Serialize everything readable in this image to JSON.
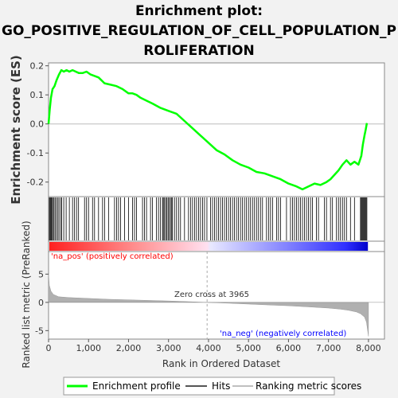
{
  "title_lines": [
    "Enrichment plot:",
    "GO_POSITIVE_REGULATION_OF_CELL_POPULATION_P",
    "ROLIFERATION"
  ],
  "colors": {
    "background": "#f2f2f2",
    "plot_bg": "#ffffff",
    "es_line": "#00ff00",
    "hits": "#000000",
    "metric_fill": "#b0b0b0",
    "pos_label": "#ff0000",
    "neg_label": "#0000ff",
    "heat_pos": "#ff0000",
    "heat_neg": "#0000ff"
  },
  "chart_data": [
    {
      "type": "line",
      "name": "es_panel",
      "ylabel": "Enrichment score (ES)",
      "ylim": [
        -0.25,
        0.21
      ],
      "xlim": [
        0,
        8400
      ],
      "yticks": [
        0.2,
        0.1,
        0.0,
        -0.1,
        -0.2
      ],
      "ytick_labels": [
        "0.2",
        "0.1",
        "0.0",
        "-0.1",
        "-0.2"
      ],
      "series": [
        {
          "name": "Enrichment profile",
          "x": [
            0,
            30,
            60,
            100,
            150,
            200,
            260,
            320,
            380,
            450,
            520,
            600,
            680,
            760,
            850,
            950,
            1050,
            1150,
            1250,
            1400,
            1550,
            1700,
            1850,
            2000,
            2100,
            2200,
            2300,
            2450,
            2600,
            2800,
            3000,
            3200,
            3400,
            3600,
            3800,
            4000,
            4200,
            4400,
            4600,
            4800,
            5000,
            5200,
            5400,
            5600,
            5800,
            6000,
            6200,
            6350,
            6500,
            6650,
            6800,
            6950,
            7050,
            7150,
            7250,
            7350,
            7450,
            7550,
            7650,
            7750,
            7820,
            7860,
            7900,
            7930,
            7960
          ],
          "y": [
            0.0,
            0.05,
            0.09,
            0.12,
            0.13,
            0.15,
            0.17,
            0.185,
            0.18,
            0.185,
            0.18,
            0.185,
            0.18,
            0.175,
            0.175,
            0.18,
            0.17,
            0.165,
            0.16,
            0.14,
            0.135,
            0.13,
            0.12,
            0.105,
            0.105,
            0.1,
            0.09,
            0.08,
            0.07,
            0.055,
            0.045,
            0.035,
            0.01,
            -0.015,
            -0.04,
            -0.065,
            -0.09,
            -0.105,
            -0.125,
            -0.14,
            -0.15,
            -0.165,
            -0.17,
            -0.18,
            -0.19,
            -0.205,
            -0.215,
            -0.225,
            -0.215,
            -0.205,
            -0.21,
            -0.2,
            -0.19,
            -0.175,
            -0.16,
            -0.14,
            -0.125,
            -0.14,
            -0.13,
            -0.14,
            -0.11,
            -0.07,
            -0.04,
            -0.02,
            0.003
          ]
        }
      ]
    },
    {
      "type": "area",
      "name": "ranked_metric_panel",
      "xlabel": "Rank in Ordered Dataset",
      "ylabel": "Ranked list metric (PreRanked)",
      "xlim": [
        0,
        8400
      ],
      "ylim": [
        -6.5,
        9
      ],
      "xticks": [
        0,
        1000,
        2000,
        3000,
        4000,
        5000,
        6000,
        7000,
        8000
      ],
      "xtick_labels": [
        "0",
        "1,000",
        "2,000",
        "3,000",
        "4,000",
        "5,000",
        "6,000",
        "7,000",
        "8,000"
      ],
      "yticks": [
        5,
        0,
        -5
      ],
      "ytick_labels": [
        "5",
        "0",
        "-5"
      ],
      "zero_cross": 3965,
      "zero_cross_label": "Zero cross at 3965",
      "pos_label": "'na_pos' (positively correlated)",
      "neg_label": "'na_neg' (negatively correlated)",
      "series": [
        {
          "name": "Ranking metric scores",
          "x": [
            0,
            20,
            60,
            120,
            250,
            500,
            1000,
            1500,
            2000,
            2500,
            3000,
            3500,
            3965,
            4500,
            5000,
            5500,
            6000,
            6500,
            7000,
            7300,
            7500,
            7700,
            7800,
            7900,
            7950,
            7980,
            8000
          ],
          "y": [
            5.0,
            3.0,
            2.0,
            1.4,
            1.0,
            0.85,
            0.7,
            0.55,
            0.45,
            0.35,
            0.25,
            0.12,
            0.0,
            -0.15,
            -0.3,
            -0.45,
            -0.6,
            -0.8,
            -1.0,
            -1.2,
            -1.4,
            -1.7,
            -2.0,
            -2.6,
            -3.5,
            -5.0,
            -6.0
          ]
        }
      ]
    }
  ],
  "hits": [
    20,
    40,
    60,
    80,
    100,
    130,
    160,
    190,
    230,
    260,
    300,
    330,
    380,
    440,
    520,
    600,
    650,
    700,
    750,
    900,
    950,
    1000,
    1100,
    1150,
    1250,
    1350,
    1400,
    1500,
    1650,
    1700,
    1750,
    1800,
    1900,
    2000,
    2100,
    2150,
    2200,
    2350,
    2400,
    2450,
    2550,
    2600,
    2700,
    2750,
    2800,
    2850,
    2870,
    2900,
    2930,
    2960,
    2990,
    3020,
    3050,
    3080,
    3100,
    3150,
    3200,
    3250,
    3300,
    3400,
    3500,
    3550,
    3600,
    3650,
    3700,
    3750,
    3800,
    3850,
    3900,
    3960,
    4050,
    4100,
    4150,
    4200,
    4250,
    4300,
    4350,
    4400,
    4450,
    4500,
    4550,
    4600,
    4650,
    4700,
    4750,
    4800,
    4850,
    4900,
    4950,
    5000,
    5050,
    5100,
    5150,
    5200,
    5250,
    5300,
    5350,
    5450,
    5500,
    5550,
    5600,
    5700,
    5750,
    5800,
    5950,
    6050,
    6100,
    6150,
    6200,
    6250,
    6300,
    6350,
    6400,
    6450,
    6500,
    6550,
    6600,
    6700,
    6750,
    6900,
    6950,
    7050,
    7100,
    7200,
    7250,
    7300,
    7350,
    7400,
    7450,
    7550,
    7650,
    7800,
    7820,
    7840,
    7860,
    7880,
    7900,
    7920,
    7940,
    7960
  ],
  "legend": {
    "items": [
      {
        "label": "Enrichment profile",
        "color": "#00ff00"
      },
      {
        "label": "Hits",
        "color": "#000000"
      },
      {
        "label": "Ranking metric scores",
        "color": "#c0c0c0"
      }
    ]
  }
}
